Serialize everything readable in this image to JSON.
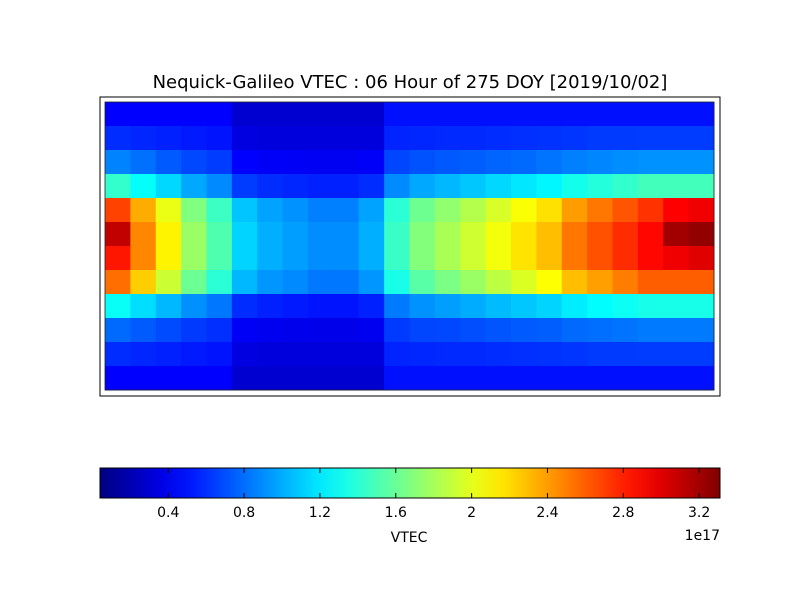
{
  "chart_data": {
    "type": "heatmap",
    "title": "Nequick-Galileo VTEC : 06 Hour of 275 DOY [2019/10/02]",
    "colormap": "jet",
    "clim": [
      0.04,
      3.31
    ],
    "colorbar": {
      "label": "VTEC",
      "offset_label": "1e17",
      "ticks": [
        0.4,
        0.8,
        1.2,
        1.6,
        2.0,
        2.4,
        2.8,
        3.2
      ]
    },
    "values": [
      [
        0.45,
        0.45,
        0.45,
        0.45,
        0.45,
        0.3,
        0.3,
        0.3,
        0.3,
        0.3,
        0.3,
        0.5,
        0.5,
        0.5,
        0.5,
        0.5,
        0.5,
        0.5,
        0.5,
        0.5,
        0.5,
        0.5,
        0.5,
        0.5
      ],
      [
        0.59,
        0.57,
        0.55,
        0.53,
        0.51,
        0.35,
        0.34,
        0.34,
        0.34,
        0.34,
        0.34,
        0.56,
        0.57,
        0.58,
        0.58,
        0.59,
        0.6,
        0.61,
        0.62,
        0.63,
        0.63,
        0.64,
        0.64,
        0.64
      ],
      [
        0.87,
        0.81,
        0.74,
        0.68,
        0.64,
        0.45,
        0.43,
        0.42,
        0.41,
        0.41,
        0.43,
        0.67,
        0.71,
        0.73,
        0.75,
        0.77,
        0.79,
        0.82,
        0.86,
        0.88,
        0.9,
        0.92,
        0.92,
        0.92
      ],
      [
        1.43,
        1.28,
        1.14,
        0.99,
        0.89,
        0.64,
        0.59,
        0.57,
        0.55,
        0.55,
        0.59,
        0.89,
        0.99,
        1.04,
        1.09,
        1.14,
        1.19,
        1.24,
        1.33,
        1.38,
        1.43,
        1.48,
        1.48,
        1.48
      ],
      [
        2.69,
        2.35,
        2.02,
        1.68,
        1.46,
        1.08,
        0.97,
        0.92,
        0.86,
        0.86,
        0.97,
        1.4,
        1.62,
        1.73,
        1.84,
        1.96,
        2.07,
        2.18,
        2.4,
        2.52,
        2.63,
        2.74,
        2.9,
        2.95
      ],
      [
        3.1,
        2.47,
        2.12,
        1.76,
        1.52,
        1.13,
        1.01,
        0.96,
        0.9,
        0.9,
        1.01,
        1.45,
        1.69,
        1.81,
        1.93,
        2.05,
        2.17,
        2.29,
        2.52,
        2.64,
        2.76,
        2.88,
        3.2,
        3.25
      ],
      [
        2.83,
        2.47,
        2.12,
        1.76,
        1.52,
        1.13,
        1.01,
        0.96,
        0.9,
        0.9,
        1.01,
        1.45,
        1.69,
        1.81,
        1.93,
        2.05,
        2.17,
        2.29,
        2.52,
        2.64,
        2.76,
        2.88,
        2.95,
        3.0
      ],
      [
        2.55,
        2.24,
        1.92,
        1.61,
        1.4,
        1.04,
        0.93,
        0.89,
        0.83,
        0.83,
        0.93,
        1.34,
        1.55,
        1.66,
        1.76,
        1.87,
        1.97,
        2.08,
        2.29,
        2.39,
        2.5,
        2.6,
        2.6,
        2.6
      ],
      [
        1.29,
        1.16,
        1.04,
        0.91,
        0.83,
        0.59,
        0.55,
        0.53,
        0.51,
        0.51,
        0.55,
        0.84,
        0.92,
        0.96,
        1.0,
        1.05,
        1.09,
        1.13,
        1.21,
        1.26,
        1.3,
        1.34,
        1.34,
        1.34
      ],
      [
        0.79,
        0.74,
        0.69,
        0.63,
        0.6,
        0.42,
        0.4,
        0.39,
        0.38,
        0.38,
        0.4,
        0.63,
        0.67,
        0.68,
        0.7,
        0.72,
        0.74,
        0.75,
        0.79,
        0.8,
        0.82,
        0.84,
        0.84,
        0.84
      ],
      [
        0.59,
        0.57,
        0.55,
        0.53,
        0.51,
        0.35,
        0.34,
        0.34,
        0.34,
        0.34,
        0.34,
        0.56,
        0.57,
        0.58,
        0.58,
        0.59,
        0.6,
        0.61,
        0.62,
        0.63,
        0.63,
        0.64,
        0.64,
        0.64
      ],
      [
        0.45,
        0.45,
        0.45,
        0.45,
        0.45,
        0.3,
        0.3,
        0.3,
        0.3,
        0.3,
        0.3,
        0.5,
        0.5,
        0.5,
        0.5,
        0.5,
        0.5,
        0.5,
        0.5,
        0.5,
        0.5,
        0.5,
        0.5,
        0.5
      ]
    ]
  }
}
